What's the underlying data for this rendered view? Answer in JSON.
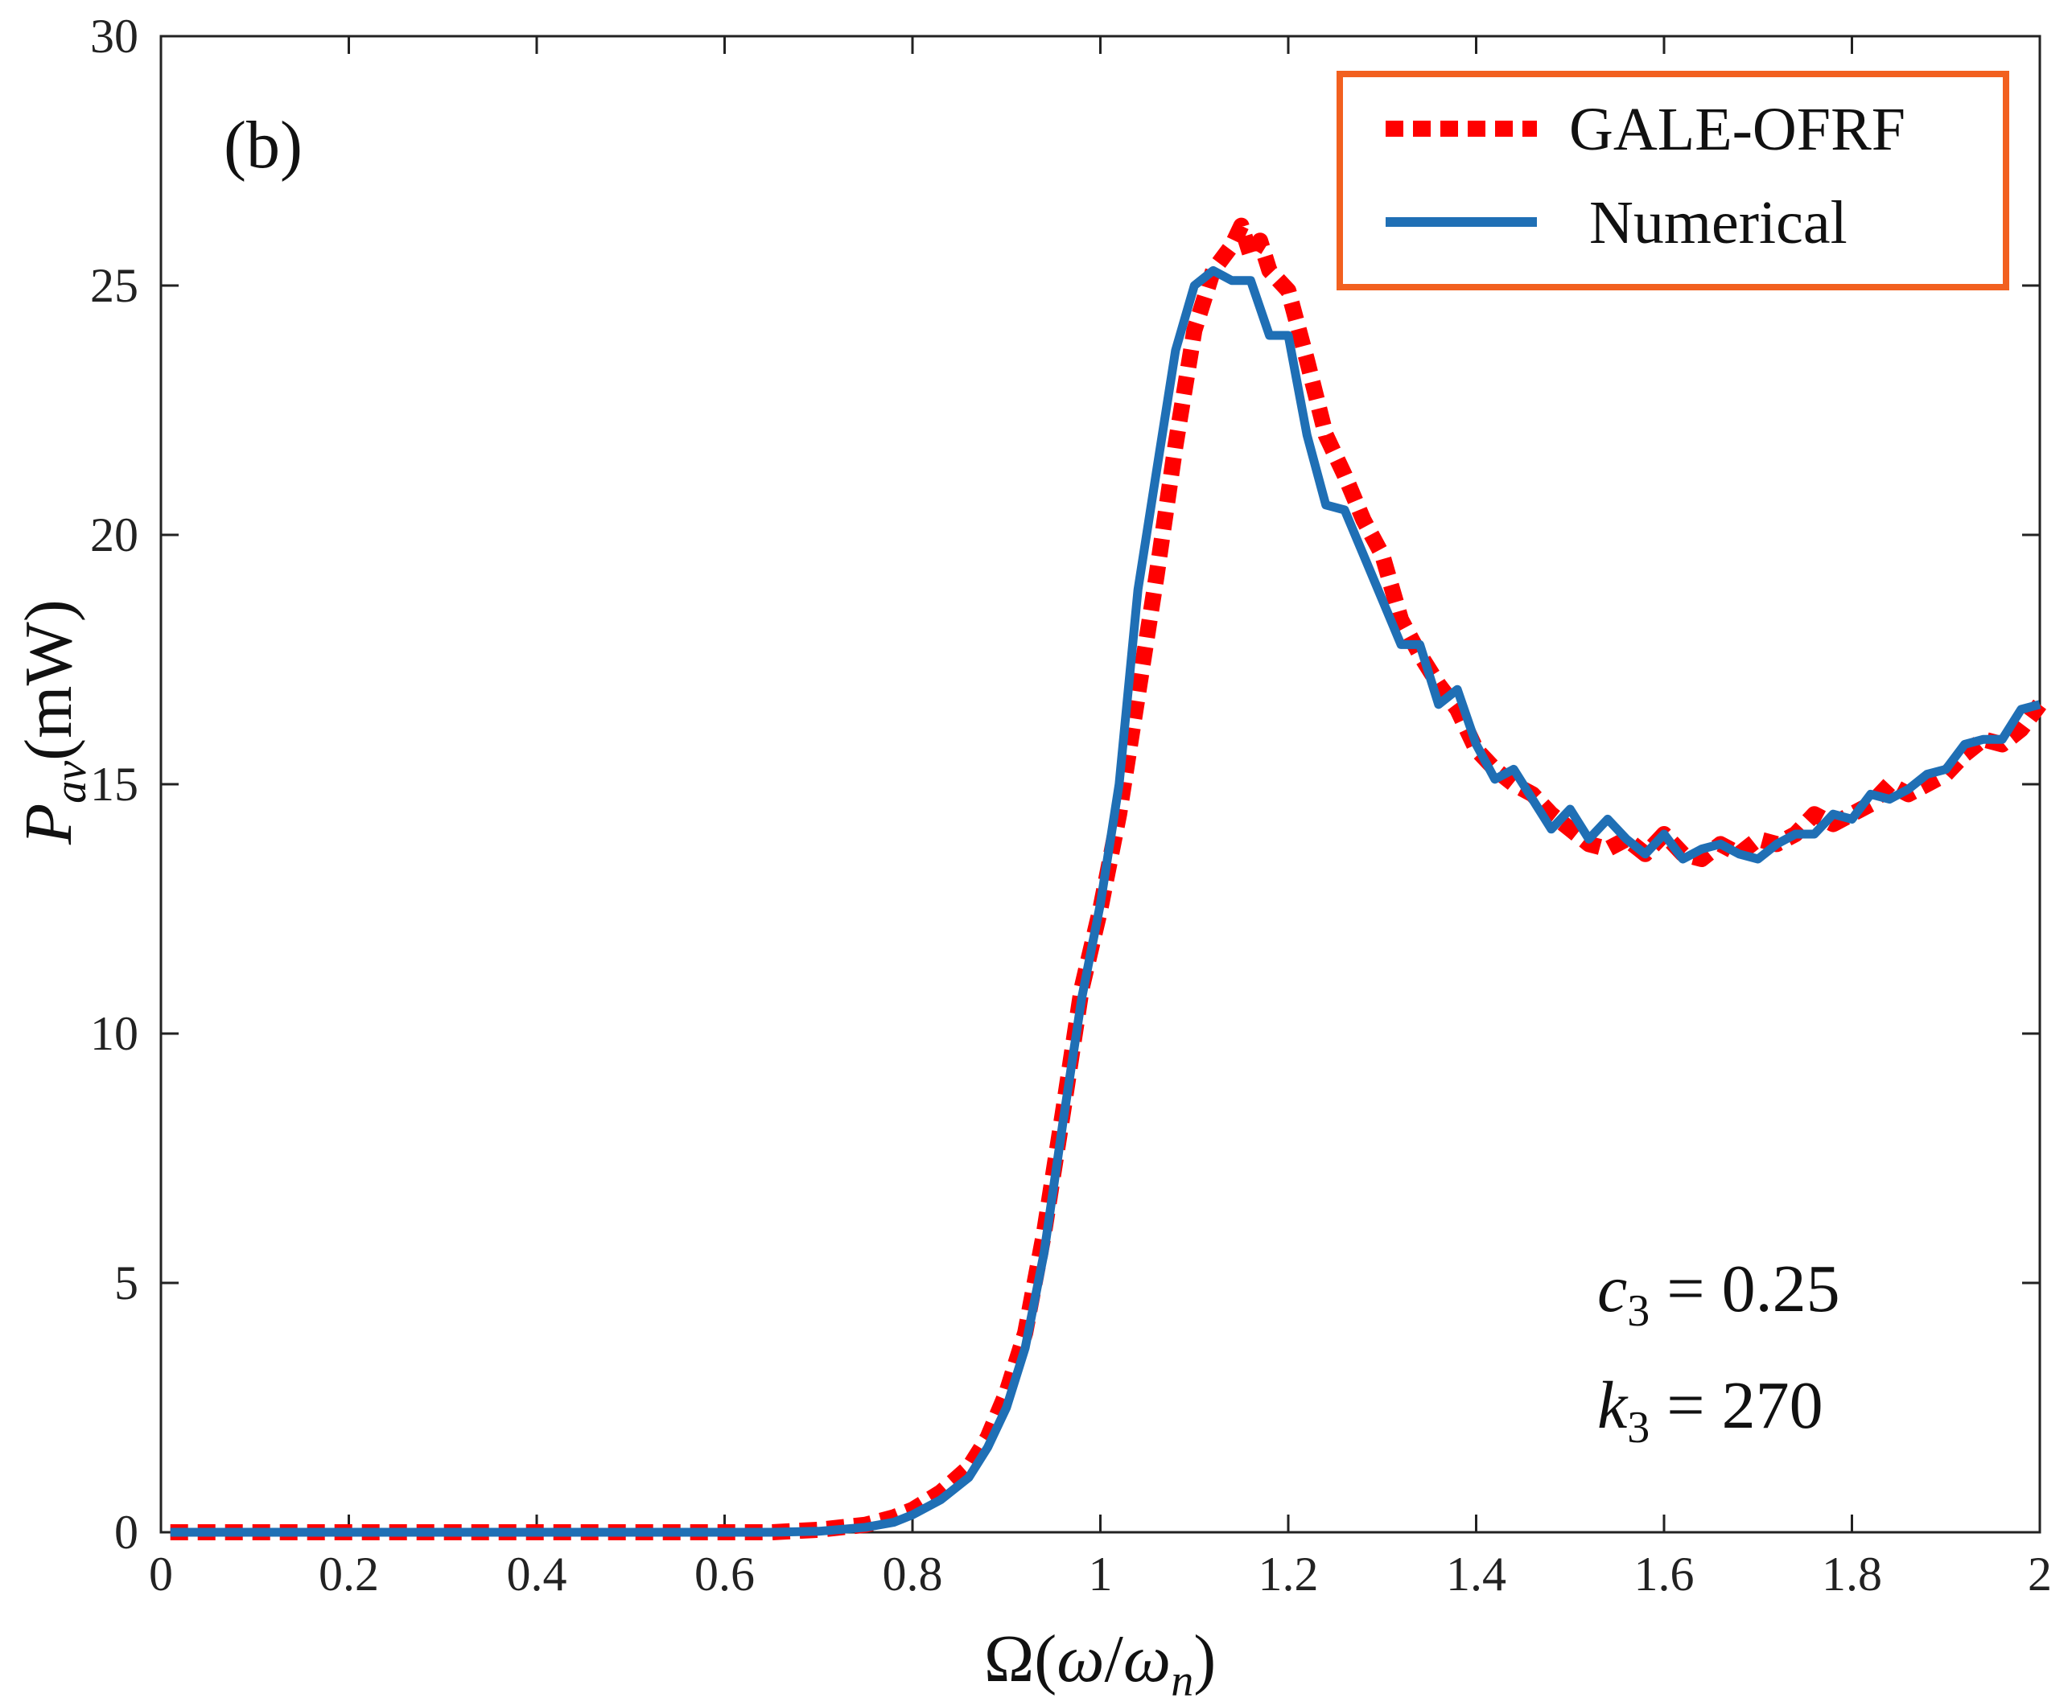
{
  "chart_data": {
    "type": "line",
    "panel_label": "(b)",
    "xlabel": {
      "main": "Ω(",
      "omega": "ω",
      "slash": "/",
      "omega_n": "ω",
      "sub": "n",
      "close": ")"
    },
    "ylabel": {
      "symbol": "P",
      "sub": "av",
      "units": "(mW)"
    },
    "xlim": [
      0,
      2
    ],
    "ylim": [
      0,
      30
    ],
    "xticks": [
      0,
      0.2,
      0.4,
      0.6,
      0.8,
      1,
      1.2,
      1.4,
      1.6,
      1.8,
      2
    ],
    "xtick_labels": [
      "0",
      "0.2",
      "0.4",
      "0.6",
      "0.8",
      "1",
      "1.2",
      "1.4",
      "1.6",
      "1.8",
      "2"
    ],
    "yticks": [
      0,
      5,
      10,
      15,
      20,
      25,
      30
    ],
    "ytick_labels": [
      "0",
      "5",
      "10",
      "15",
      "20",
      "25",
      "30"
    ],
    "legend_position": "top-right",
    "series": [
      {
        "name": "GALE-OFRF",
        "color": "#ff0000",
        "style": "dotted",
        "x": [
          0.01,
          0.1,
          0.2,
          0.3,
          0.4,
          0.5,
          0.6,
          0.65,
          0.7,
          0.75,
          0.78,
          0.8,
          0.83,
          0.86,
          0.88,
          0.9,
          0.92,
          0.94,
          0.96,
          0.98,
          1.0,
          1.02,
          1.04,
          1.06,
          1.08,
          1.1,
          1.12,
          1.14,
          1.15,
          1.16,
          1.17,
          1.18,
          1.2,
          1.22,
          1.24,
          1.26,
          1.28,
          1.3,
          1.32,
          1.34,
          1.36,
          1.38,
          1.4,
          1.42,
          1.44,
          1.46,
          1.48,
          1.5,
          1.52,
          1.54,
          1.56,
          1.58,
          1.6,
          1.62,
          1.64,
          1.66,
          1.68,
          1.7,
          1.72,
          1.74,
          1.76,
          1.78,
          1.8,
          1.82,
          1.84,
          1.86,
          1.88,
          1.9,
          1.92,
          1.94,
          1.96,
          1.98,
          2.0
        ],
        "y": [
          0,
          0,
          0,
          0,
          0,
          0,
          0,
          0,
          0.05,
          0.15,
          0.3,
          0.45,
          0.8,
          1.3,
          1.9,
          2.8,
          4.0,
          6.0,
          8.4,
          10.9,
          12.5,
          14.4,
          16.8,
          19.2,
          21.8,
          24.1,
          25.3,
          25.8,
          26.2,
          25.6,
          25.9,
          25.3,
          24.9,
          23.5,
          22.0,
          21.2,
          20.3,
          19.6,
          18.3,
          17.6,
          17.0,
          16.5,
          15.7,
          15.3,
          15.0,
          14.8,
          14.4,
          14.1,
          13.8,
          13.7,
          13.9,
          13.6,
          14.0,
          13.6,
          13.5,
          13.8,
          13.6,
          13.9,
          13.8,
          14.0,
          14.4,
          14.2,
          14.4,
          14.6,
          15.0,
          14.8,
          15.0,
          15.2,
          15.6,
          15.9,
          15.8,
          16.1,
          16.6
        ]
      },
      {
        "name": "Numerical",
        "color": "#1f6fb5",
        "style": "solid",
        "x": [
          0.01,
          0.1,
          0.2,
          0.3,
          0.4,
          0.5,
          0.6,
          0.65,
          0.7,
          0.75,
          0.78,
          0.8,
          0.83,
          0.86,
          0.88,
          0.9,
          0.92,
          0.94,
          0.96,
          0.98,
          1.0,
          1.02,
          1.04,
          1.06,
          1.08,
          1.1,
          1.12,
          1.14,
          1.16,
          1.18,
          1.2,
          1.22,
          1.24,
          1.26,
          1.28,
          1.3,
          1.32,
          1.34,
          1.36,
          1.38,
          1.4,
          1.42,
          1.44,
          1.46,
          1.48,
          1.5,
          1.52,
          1.54,
          1.56,
          1.58,
          1.6,
          1.62,
          1.64,
          1.66,
          1.68,
          1.7,
          1.72,
          1.74,
          1.76,
          1.78,
          1.8,
          1.82,
          1.84,
          1.86,
          1.88,
          1.9,
          1.92,
          1.94,
          1.96,
          1.98,
          2.0
        ],
        "y": [
          0,
          0,
          0,
          0,
          0,
          0,
          0,
          0,
          0.02,
          0.1,
          0.2,
          0.35,
          0.65,
          1.1,
          1.7,
          2.5,
          3.7,
          5.6,
          8.2,
          10.7,
          12.6,
          15.0,
          18.9,
          21.3,
          23.7,
          25.0,
          25.3,
          25.1,
          25.1,
          24.0,
          24.0,
          22.0,
          20.6,
          20.5,
          19.6,
          18.7,
          17.8,
          17.8,
          16.6,
          16.9,
          15.8,
          15.1,
          15.3,
          14.7,
          14.1,
          14.5,
          13.9,
          14.3,
          13.9,
          13.6,
          14.0,
          13.5,
          13.7,
          13.8,
          13.6,
          13.5,
          13.8,
          14.0,
          14.0,
          14.4,
          14.3,
          14.8,
          14.7,
          14.9,
          15.2,
          15.3,
          15.8,
          15.9,
          15.9,
          16.5,
          16.6
        ]
      }
    ],
    "annotations": {
      "c3": {
        "symbol": "c",
        "sub": "3",
        "eq": " = 0.25"
      },
      "k3": {
        "symbol": "k",
        "sub": "3",
        "eq": " = 270"
      }
    }
  }
}
